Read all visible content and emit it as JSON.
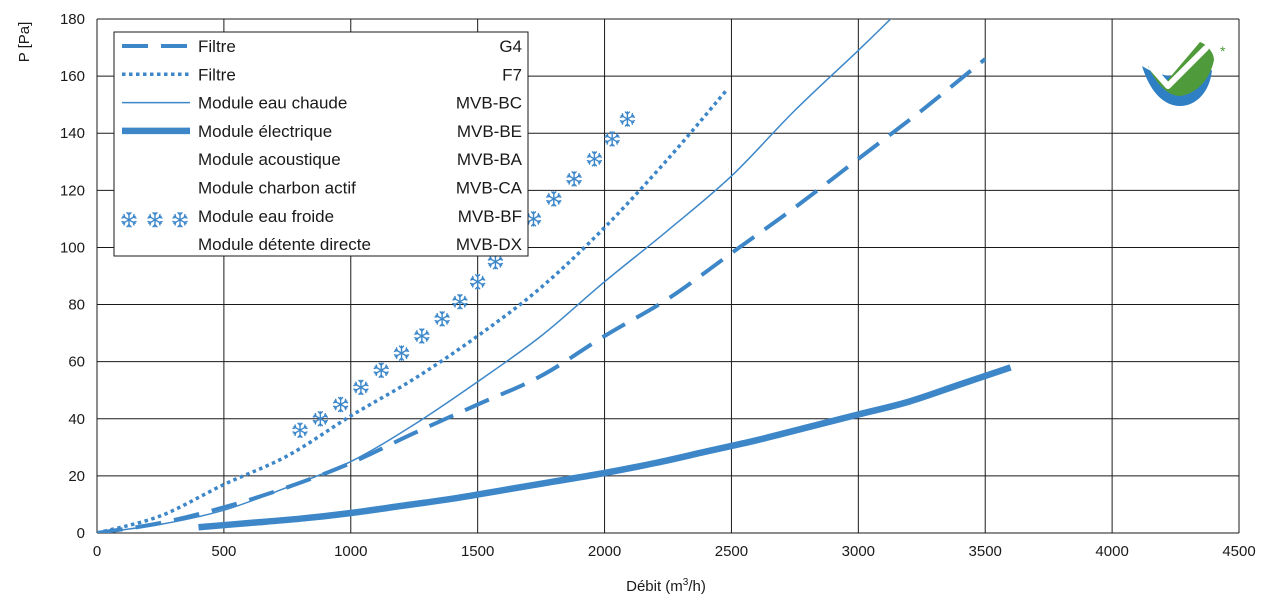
{
  "chart_data": {
    "type": "line",
    "title": "",
    "xlabel": "Débit (m³/h)",
    "xlabel_prefix": "Débit (m",
    "xlabel_sup": "3",
    "xlabel_suffix": "/h)",
    "ylabel": "P [Pa]",
    "xlim": [
      0,
      4500
    ],
    "ylim": [
      0,
      180
    ],
    "xticks": [
      0,
      500,
      1000,
      1500,
      2000,
      2500,
      3000,
      3500,
      4000,
      4500
    ],
    "yticks": [
      0,
      20,
      40,
      60,
      80,
      100,
      120,
      140,
      160,
      180
    ],
    "grid": true,
    "legend_position": "top-left",
    "color": "#3d87c9",
    "series": [
      {
        "name": "Filtre",
        "code": "G4",
        "style": "dashed",
        "x": [
          0,
          250,
          500,
          750,
          1000,
          1250,
          1500,
          1750,
          2000,
          2250,
          2500,
          2750,
          3000,
          3250,
          3500
        ],
        "y": [
          0,
          3.5,
          9,
          16,
          24.5,
          35,
          45,
          55,
          69,
          82,
          98,
          114,
          131,
          148,
          166
        ]
      },
      {
        "name": "Filtre",
        "code": "F7",
        "style": "dotted",
        "x": [
          0,
          250,
          500,
          750,
          1000,
          1250,
          1500,
          1750,
          2000,
          2250,
          2480
        ],
        "y": [
          0,
          6,
          17,
          27,
          41,
          54,
          69,
          86,
          107,
          131,
          155
        ]
      },
      {
        "name": "Module eau chaude",
        "code": "MVB-BC",
        "style": "thin",
        "x": [
          0,
          250,
          500,
          750,
          1000,
          1250,
          1500,
          1750,
          2000,
          2250,
          2500,
          2750,
          3000,
          3150
        ],
        "y": [
          0,
          3,
          8,
          16,
          25,
          38,
          53,
          69,
          88,
          106,
          125,
          148,
          169,
          182
        ]
      },
      {
        "name": "Module électrique",
        "code": "MVB-BE",
        "style": "thick",
        "x": [
          400,
          600,
          800,
          1000,
          1200,
          1400,
          1600,
          1800,
          2000,
          2200,
          2400,
          2600,
          2800,
          3000,
          3200,
          3400,
          3600
        ],
        "y": [
          2,
          3.5,
          5,
          7,
          9.5,
          12,
          15,
          18,
          21,
          24.5,
          28.5,
          32.5,
          37,
          41.5,
          46,
          52,
          58
        ]
      },
      {
        "name": "Module acoustique",
        "code": "MVB-BA",
        "style": "none",
        "x": [],
        "y": []
      },
      {
        "name": "Module charbon actif",
        "code": "MVB-CA",
        "style": "none",
        "x": [],
        "y": []
      },
      {
        "name": "Module eau froide",
        "code": "MVB-BF",
        "style": "snowflake",
        "x": [
          800,
          880,
          960,
          1040,
          1120,
          1200,
          1280,
          1360,
          1430,
          1500,
          1570,
          1640,
          1720,
          1800,
          1880,
          1960,
          2030,
          2090
        ],
        "y": [
          36,
          40,
          45,
          51,
          57,
          63,
          69,
          75,
          81,
          88,
          95,
          102,
          110,
          117,
          124,
          131,
          138,
          145
        ]
      },
      {
        "name": "Module détente directe",
        "code": "MVB-DX",
        "style": "none",
        "x": [],
        "y": []
      }
    ]
  }
}
